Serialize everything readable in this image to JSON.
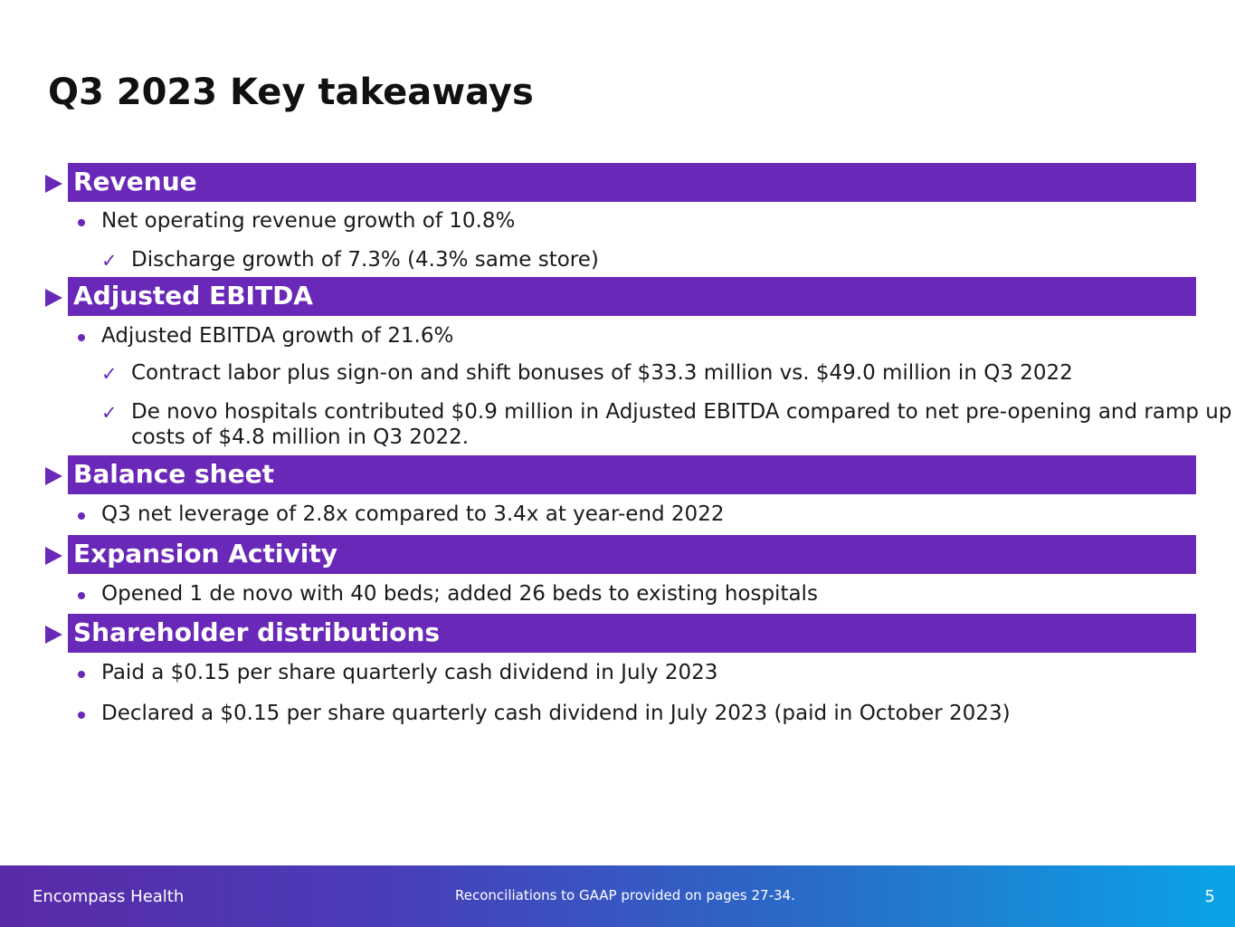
{
  "title": "Q3 2023 Key takeaways",
  "sections": [
    {
      "title": "Revenue",
      "bullets": [
        {
          "text": "Net operating revenue growth of 10.8%",
          "checks": [
            "Discharge growth of 7.3% (4.3% same store)"
          ]
        }
      ]
    },
    {
      "title": "Adjusted EBITDA",
      "bullets": [
        {
          "text": "Adjusted EBITDA growth of 21.6%",
          "checks": [
            "Contract labor plus sign-on and shift bonuses of $33.3 million vs. $49.0 million in Q3 2022",
            "De novo hospitals contributed $0.9 million in Adjusted EBITDA compared to net pre-opening and ramp up costs of $4.8 million in Q3 2022."
          ]
        }
      ]
    },
    {
      "title": "Balance sheet",
      "bullets": [
        {
          "text": "Q3 net leverage of 2.8x compared to 3.4x at year-end 2022"
        }
      ]
    },
    {
      "title": "Expansion Activity",
      "bullets": [
        {
          "text": "Opened 1 de novo with 40 beds; added 26 beds to existing hospitals"
        }
      ]
    },
    {
      "title": "Shareholder distributions",
      "bullets": [
        {
          "text": "Paid a $0.15 per share quarterly cash dividend in July 2023"
        },
        {
          "text": "Declared a $0.15 per share quarterly cash dividend in July 2023 (paid in October 2023)"
        }
      ]
    }
  ],
  "footer": {
    "company": "Encompass Health",
    "note": "Reconciliations to GAAP provided on pages 27-34.",
    "page_number": "5"
  },
  "colors": {
    "accent": "#6a28b8",
    "footer_gradient_start": "#5a2aa8",
    "footer_gradient_end": "#0aa4e6"
  },
  "icons": {
    "section_marker": "triangle-right-icon",
    "bullet": "bullet-dot-icon",
    "sub_bullet": "checkmark-icon"
  }
}
